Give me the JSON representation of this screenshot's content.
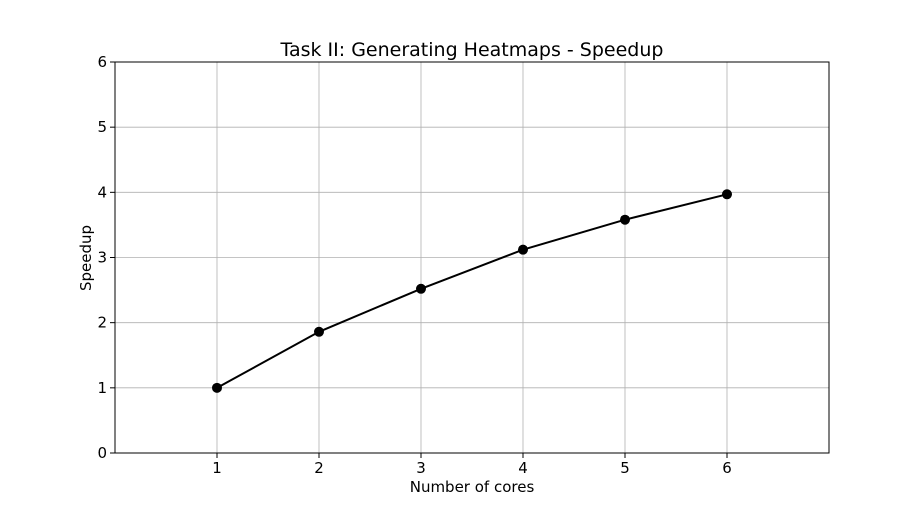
{
  "chart_data": {
    "type": "line",
    "title": "Task II: Generating Heatmaps - Speedup",
    "xlabel": "Number of cores",
    "ylabel": "Speedup",
    "xlim": [
      0,
      7
    ],
    "ylim": [
      0,
      6
    ],
    "xticks": [
      1,
      2,
      3,
      4,
      5,
      6
    ],
    "yticks": [
      0,
      1,
      2,
      3,
      4,
      5,
      6
    ],
    "grid": true,
    "series": [
      {
        "x": [
          1,
          2,
          3,
          4,
          5,
          6
        ],
        "values": [
          1.0,
          1.86,
          2.52,
          3.12,
          3.58,
          3.97
        ],
        "color": "#000000",
        "marker": "circle"
      }
    ]
  }
}
